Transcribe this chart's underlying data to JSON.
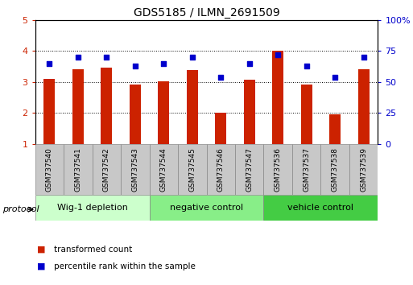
{
  "title": "GDS5185 / ILMN_2691509",
  "samples": [
    "GSM737540",
    "GSM737541",
    "GSM737542",
    "GSM737543",
    "GSM737544",
    "GSM737545",
    "GSM737546",
    "GSM737547",
    "GSM737536",
    "GSM737537",
    "GSM737538",
    "GSM737539"
  ],
  "bar_values": [
    3.1,
    3.4,
    3.45,
    2.92,
    3.02,
    3.38,
    2.02,
    3.08,
    4.0,
    2.92,
    1.95,
    3.42
  ],
  "dot_values_right": [
    65,
    70,
    70,
    63,
    65,
    70,
    54,
    65,
    72,
    63,
    54,
    70
  ],
  "ylim_left": [
    1,
    5
  ],
  "ylim_right": [
    0,
    100
  ],
  "yticks_left": [
    1,
    2,
    3,
    4,
    5
  ],
  "yticks_right": [
    0,
    25,
    50,
    75,
    100
  ],
  "ytick_labels_right": [
    "0",
    "25",
    "50",
    "75",
    "100%"
  ],
  "bar_color": "#cc2200",
  "dot_color": "#0000cc",
  "groups": [
    {
      "label": "Wig-1 depletion",
      "indices": [
        0,
        1,
        2,
        3
      ],
      "color": "#ccffcc"
    },
    {
      "label": "negative control",
      "indices": [
        4,
        5,
        6,
        7
      ],
      "color": "#88ee88"
    },
    {
      "label": "vehicle control",
      "indices": [
        8,
        9,
        10,
        11
      ],
      "color": "#44cc44"
    }
  ],
  "protocol_label": "protocol",
  "legend_bar_label": "transformed count",
  "legend_dot_label": "percentile rank within the sample",
  "bar_width": 0.4,
  "tick_bg": "#c8c8c8",
  "border_color": "#888888"
}
